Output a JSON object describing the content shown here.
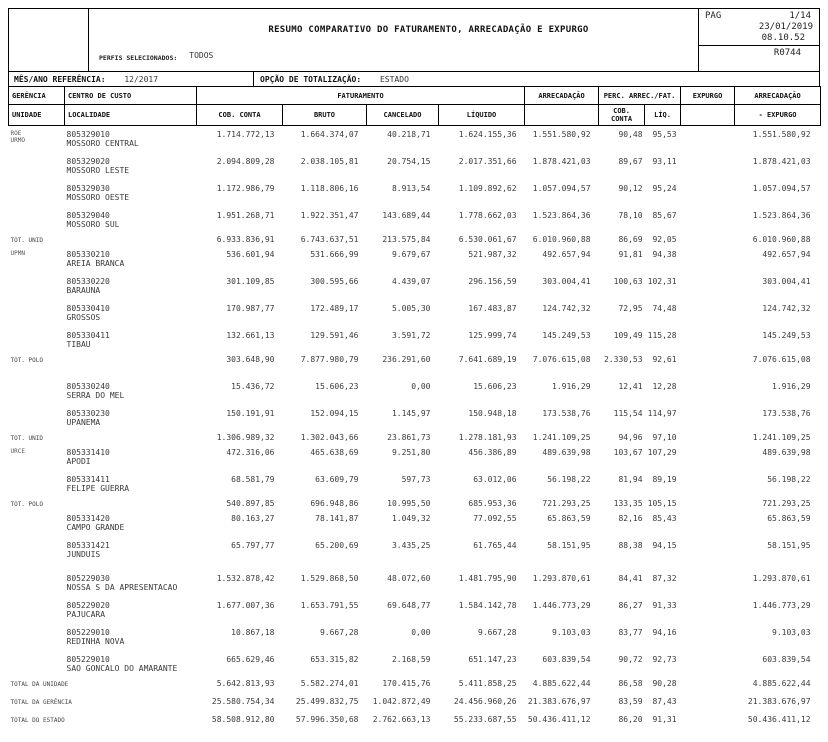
{
  "page": {
    "title": "RESUMO COMPARATIVO DO FATURAMENTO, ARRECADAÇÃO E EXPURGO",
    "perfis_label": "PERFIS SELECIONADOS:",
    "perfis_value": "TODOS",
    "pag_label": "PAG",
    "pag_value": "1/14",
    "date": "23/01/2019",
    "time": "08.10.52",
    "report_code": "R0744",
    "ref_label": "MÊS/ANO REFERÊNCIA:",
    "ref_value": "12/2017",
    "totalizacao_label": "OPÇÃO DE TOTALIZAÇÃO:",
    "totalizacao_value": "ESTADO"
  },
  "table": {
    "columns": {
      "gerencia": "GERÊNCIA",
      "unidade": "UNIDADE",
      "centro": "CENTRO DE CUSTO",
      "localidade": "LOCALIDADE",
      "faturamento": "FATURAMENTO",
      "cob_conta": "COB. CONTA",
      "bruto": "BRUTO",
      "cancelado": "CANCELADO",
      "liquido": "LÍQUIDO",
      "arrecadacao": "ARRECADAÇÃO",
      "perc": "PERC. ARREC./FAT.",
      "perc_cob": "COB. CONTA",
      "perc_liq": "LÍQ.",
      "expurgo": "EXPURGO",
      "arrec_expurgo_1": "ARRECADAÇÃO",
      "arrec_expurgo_2": "- EXPURGO"
    },
    "rows": [
      {
        "type": "entity",
        "gerencia": [
          "ROE",
          "URMO"
        ],
        "code": "805329010",
        "name": "MOSSORO CENTRAL",
        "values": [
          "1.714.772,13",
          "1.664.374,07",
          "40.218,71",
          "1.624.155,36",
          "1.551.580,92",
          "90,48",
          "95,53",
          "",
          "1.551.580,92"
        ]
      },
      {
        "type": "entity",
        "code": "805329020",
        "name": "MOSSORO LESTE",
        "values": [
          "2.094.809,28",
          "2.038.105,81",
          "20.754,15",
          "2.017.351,66",
          "1.878.421,03",
          "89,67",
          "93,11",
          "",
          "1.878.421,03"
        ]
      },
      {
        "type": "entity",
        "code": "805329030",
        "name": "MOSSORO OESTE",
        "values": [
          "1.172.986,79",
          "1.118.806,16",
          "8.913,54",
          "1.109.892,62",
          "1.057.094,57",
          "90,12",
          "95,24",
          "",
          "1.057.094,57"
        ]
      },
      {
        "type": "entity",
        "code": "805329040",
        "name": "MOSSORO SUL",
        "values": [
          "1.951.268,71",
          "1.922.351,47",
          "143.689,44",
          "1.778.662,03",
          "1.523.864,36",
          "78,10",
          "85,67",
          "",
          "1.523.864,36"
        ]
      },
      {
        "type": "total",
        "label": "TOT. UNID",
        "values": [
          "6.933.836,91",
          "6.743.637,51",
          "213.575,84",
          "6.530.061,67",
          "6.010.960,88",
          "86,69",
          "92,05",
          "",
          "6.010.960,88"
        ]
      },
      {
        "type": "entity",
        "gerencia": [
          "UPMN"
        ],
        "code": "805330210",
        "name": "AREIA BRANCA",
        "values": [
          "536.601,94",
          "531.666,99",
          "9.679,67",
          "521.987,32",
          "492.657,94",
          "91,81",
          "94,38",
          "",
          "492.657,94"
        ]
      },
      {
        "type": "entity",
        "code": "805330220",
        "name": "BARAUNA",
        "values": [
          "301.109,85",
          "300.595,66",
          "4.439,07",
          "296.156,59",
          "303.004,41",
          "100,63",
          "102,31",
          "",
          "303.004,41"
        ]
      },
      {
        "type": "entity",
        "code": "805330410",
        "name": "GROSSOS",
        "values": [
          "170.987,77",
          "172.489,17",
          "5.005,30",
          "167.483,87",
          "124.742,32",
          "72,95",
          "74,48",
          "",
          "124.742,32"
        ]
      },
      {
        "type": "entity",
        "code": "805330411",
        "name": "TIBAU",
        "values": [
          "132.661,13",
          "129.591,46",
          "3.591,72",
          "125.999,74",
          "145.249,53",
          "109,49",
          "115,28",
          "",
          "145.249,53"
        ]
      },
      {
        "type": "total",
        "label": "TOT. POLO",
        "values": [
          "303.648,90",
          "7.877.980,79",
          "236.291,60",
          "7.641.689,19",
          "7.076.615,08",
          "2.330,53",
          "92,61",
          "",
          "7.076.615,08"
        ]
      },
      {
        "type": "gap"
      },
      {
        "type": "entity",
        "code": "805330240",
        "name": "SERRA DO MEL",
        "values": [
          "15.436,72",
          "15.606,23",
          "0,00",
          "15.606,23",
          "1.916,29",
          "12,41",
          "12,28",
          "",
          "1.916,29"
        ]
      },
      {
        "type": "entity",
        "code": "805330230",
        "name": "UPANEMA",
        "values": [
          "150.191,91",
          "152.094,15",
          "1.145,97",
          "150.948,18",
          "173.538,76",
          "115,54",
          "114,97",
          "",
          "173.538,76"
        ]
      },
      {
        "type": "total",
        "label": "TOT. UNID",
        "values": [
          "1.306.989,32",
          "1.302.043,66",
          "23.861,73",
          "1.278.181,93",
          "1.241.109,25",
          "94,96",
          "97,10",
          "",
          "1.241.109,25"
        ]
      },
      {
        "type": "entity",
        "gerencia": [
          "URCE"
        ],
        "code": "805331410",
        "name": "APODI",
        "values": [
          "472.316,06",
          "465.638,69",
          "9.251,80",
          "456.386,89",
          "489.639,98",
          "103,67",
          "107,29",
          "",
          "489.639,98"
        ]
      },
      {
        "type": "entity",
        "code": "805331411",
        "name": "FELIPE GUERRA",
        "values": [
          "68.581,79",
          "63.609,79",
          "597,73",
          "63.012,06",
          "56.198,22",
          "81,94",
          "89,19",
          "",
          "56.198,22"
        ]
      },
      {
        "type": "total",
        "label": "TOT. POLO",
        "values": [
          "540.897,85",
          "696.948,86",
          "10.995,50",
          "685.953,36",
          "721.293,25",
          "133,35",
          "105,15",
          "",
          "721.293,25"
        ]
      },
      {
        "type": "entity",
        "code": "805331420",
        "name": "CAMPO GRANDE",
        "values": [
          "80.163,27",
          "78.141,87",
          "1.049,32",
          "77.092,55",
          "65.863,59",
          "82,16",
          "85,43",
          "",
          "65.863,59"
        ]
      },
      {
        "type": "entity",
        "code": "805331421",
        "name": "JUNDUIS",
        "values": [
          "65.797,77",
          "65.200,69",
          "3.435,25",
          "61.765,44",
          "58.151,95",
          "88,38",
          "94,15",
          "",
          "58.151,95"
        ]
      },
      {
        "type": "gap-sm"
      },
      {
        "type": "entity",
        "code": "805229030",
        "name": "NOSSA S DA APRESENTACAO",
        "values": [
          "1.532.878,42",
          "1.529.868,50",
          "48.072,60",
          "1.481.795,90",
          "1.293.870,61",
          "84,41",
          "87,32",
          "",
          "1.293.870,61"
        ]
      },
      {
        "type": "entity",
        "code": "805229020",
        "name": "PAJUCARA",
        "values": [
          "1.677.007,36",
          "1.653.791,55",
          "69.648,77",
          "1.584.142,78",
          "1.446.773,29",
          "86,27",
          "91,33",
          "",
          "1.446.773,29"
        ]
      },
      {
        "type": "entity",
        "code": "805229010",
        "name": "REDINHA NOVA",
        "values": [
          "10.867,18",
          "9.667,28",
          "0,00",
          "9.667,28",
          "9.103,03",
          "83,77",
          "94,16",
          "",
          "9.103,03"
        ]
      },
      {
        "type": "entity",
        "code": "805229010",
        "name": "SAO GONCALO DO AMARANTE",
        "values": [
          "665.629,46",
          "653.315,82",
          "2.168,59",
          "651.147,23",
          "603.839,54",
          "90,72",
          "92,73",
          "",
          "603.839,54"
        ]
      },
      {
        "type": "total",
        "label": "TOTAL DA UNIDADE",
        "values": [
          "5.642.813,93",
          "5.582.274,01",
          "170.415,76",
          "5.411.858,25",
          "4.885.622,44",
          "86,58",
          "90,28",
          "",
          "4.885.622,44"
        ]
      },
      {
        "type": "gap-sm"
      },
      {
        "type": "total",
        "label": "TOTAL DA GERÊNCIA",
        "values": [
          "25.580.754,34",
          "25.499.832,75",
          "1.042.872,49",
          "24.456.960,26",
          "21.383.676,97",
          "83,59",
          "87,43",
          "",
          "21.383.676,97"
        ]
      },
      {
        "type": "gap-sm"
      },
      {
        "type": "total",
        "label": "TOTAL DO ESTADO",
        "values": [
          "58.508.912,80",
          "57.996.350,68",
          "2.762.663,13",
          "55.233.687,55",
          "50.436.411,12",
          "86,20",
          "91,31",
          "",
          "50.436.411,12"
        ]
      }
    ]
  }
}
